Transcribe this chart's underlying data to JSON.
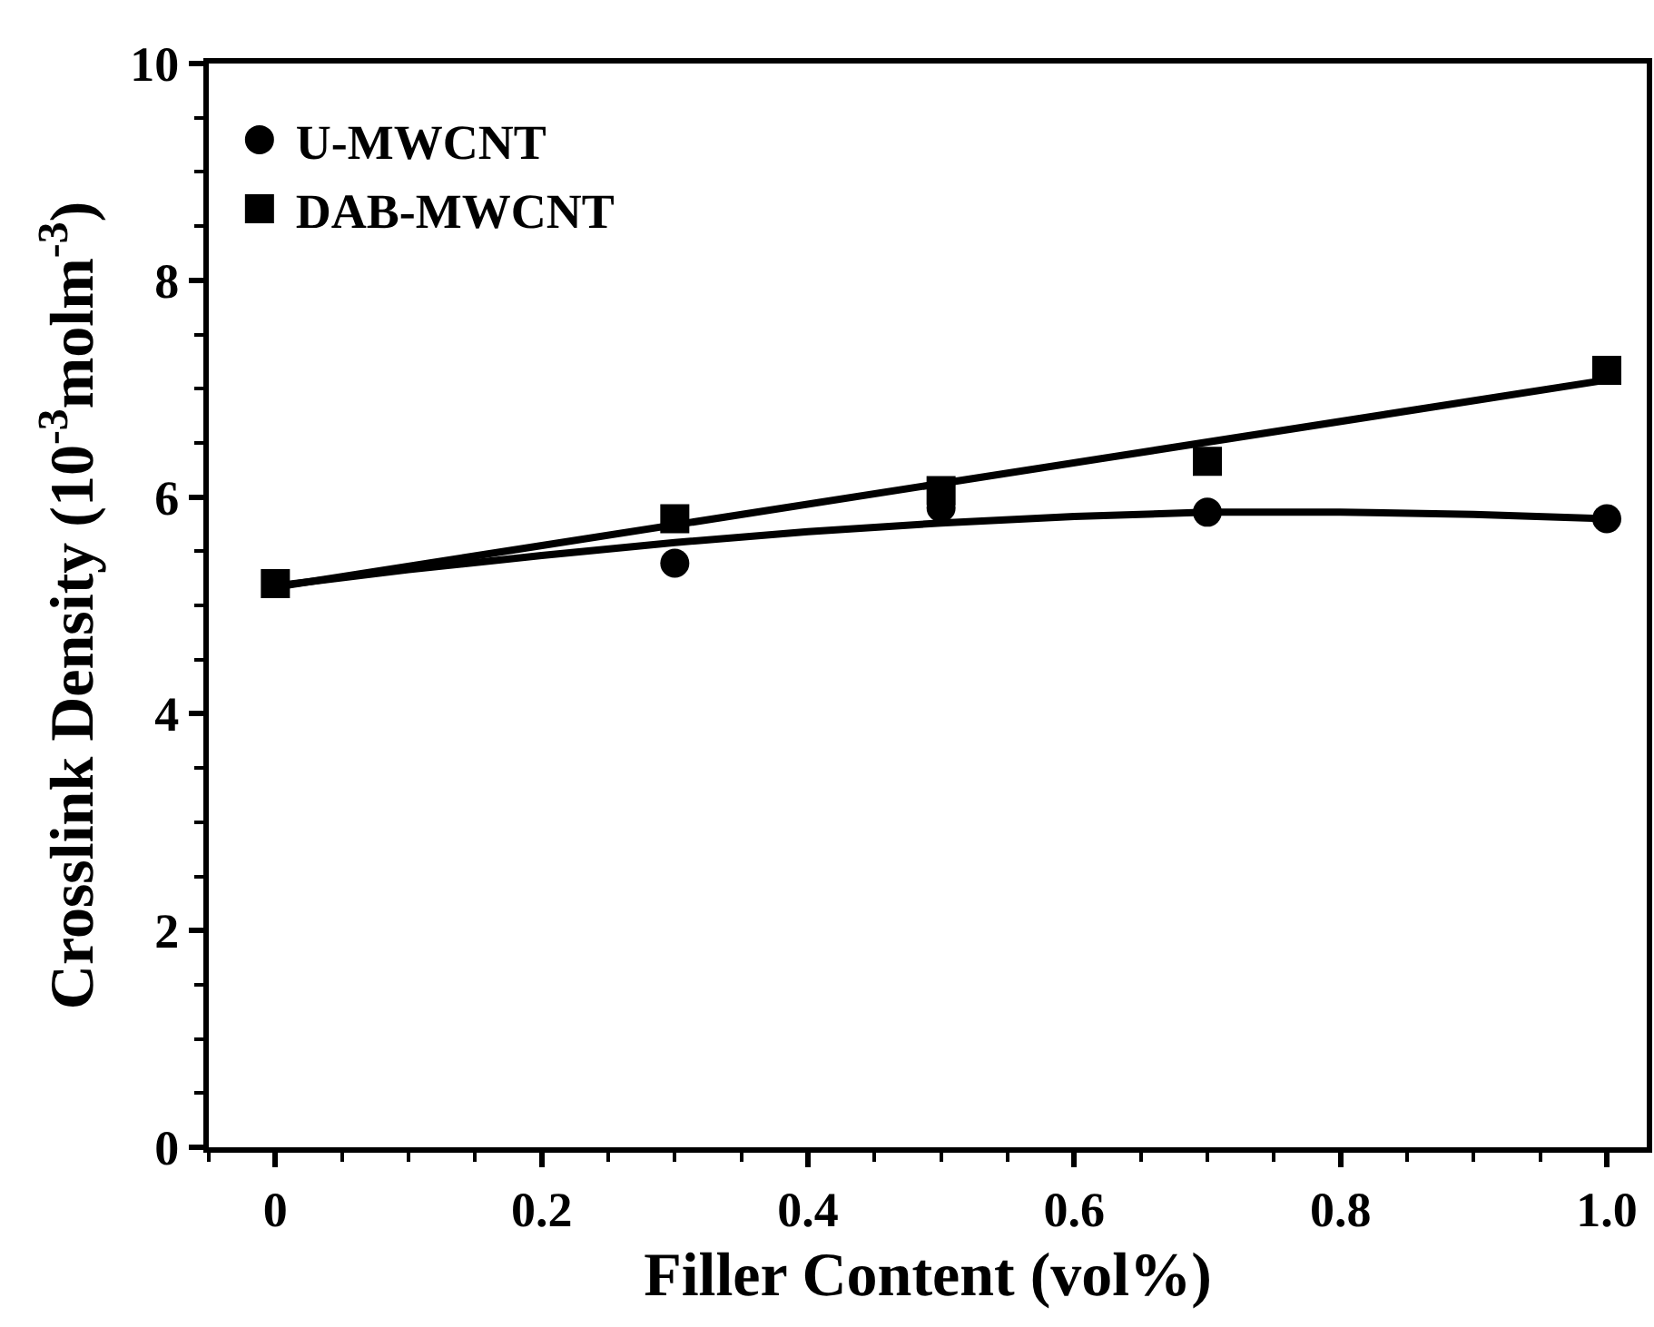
{
  "chart_data": {
    "type": "scatter",
    "xlabel": "Filler Content (vol%)",
    "ylabel": "Crosslink Density (10$^{-3}$molm$^{-3}$)",
    "xlim": [
      -0.05,
      1.03
    ],
    "xticks": [
      {
        "value": 0,
        "label": "0"
      },
      0.2,
      0.4,
      0.6,
      0.8,
      {
        "value": 1,
        "label": "1.0"
      }
    ],
    "ylim": [
      0,
      10
    ],
    "yticks": [
      0,
      2,
      4,
      6,
      8,
      10
    ],
    "grid": false,
    "legend": "top left",
    "series": [
      {
        "type": "line",
        "color": "#000000",
        "x": [
          0,
          0.1,
          0.2,
          0.3,
          0.4,
          0.5,
          0.6,
          0.7,
          0.8,
          0.9,
          1.0
        ],
        "values": [
          5.18,
          5.33,
          5.46,
          5.58,
          5.68,
          5.76,
          5.82,
          5.86,
          5.86,
          5.84,
          5.8
        ]
      },
      {
        "type": "line",
        "color": "#000000",
        "x": [
          0,
          1.0
        ],
        "values": [
          5.17,
          7.08
        ]
      },
      {
        "name": "U-MWCNT",
        "marker": "circle",
        "color": "#000000",
        "x": [
          0.3,
          0.5,
          0.7,
          1.0
        ],
        "values": [
          5.39,
          5.9,
          5.86,
          5.8
        ]
      },
      {
        "name": "DAB-MWCNT",
        "marker": "square",
        "color": "#000000",
        "x": [
          0,
          0.3,
          0.5,
          0.7,
          1.0
        ],
        "values": [
          5.2,
          5.8,
          6.06,
          6.33,
          7.17
        ]
      }
    ]
  }
}
